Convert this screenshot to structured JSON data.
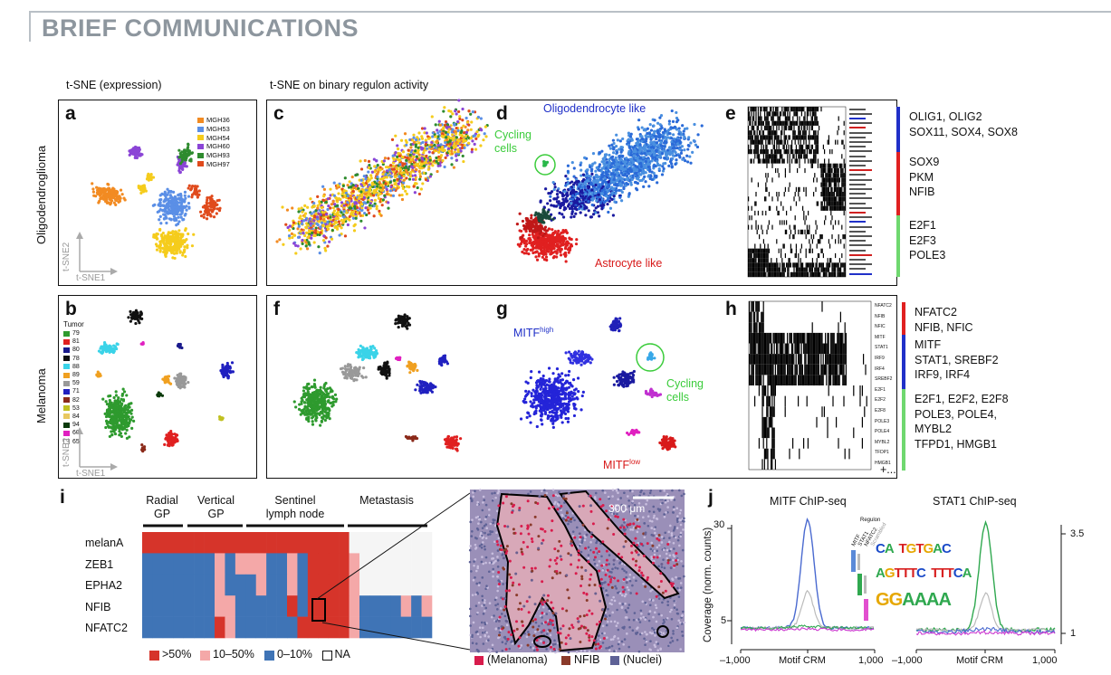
{
  "header": {
    "title": "BRIEF COMMUNICATIONS"
  },
  "sections": {
    "expression": "t-SNE (expression)",
    "binary": "t-SNE on binary regulon activity"
  },
  "row_labels": {
    "oligo": "Oligodendroglioma",
    "melanoma": "Melanoma"
  },
  "axes": {
    "tsne1": "t-SNE1",
    "tsne2": "t-SNE2"
  },
  "panels": {
    "a": "a",
    "b": "b",
    "c": "c",
    "d": "d",
    "e": "e",
    "f": "f",
    "g": "g",
    "h": "h",
    "i": "i",
    "j": "j"
  },
  "legend_a": {
    "items": [
      {
        "label": "MGH36",
        "color": "#f28b22"
      },
      {
        "label": "MGH53",
        "color": "#5b8fe6"
      },
      {
        "label": "MGH54",
        "color": "#f5cc1c"
      },
      {
        "label": "MGH60",
        "color": "#8b45d6"
      },
      {
        "label": "MGH93",
        "color": "#2e8b2e"
      },
      {
        "label": "MGH97",
        "color": "#e04a1c"
      }
    ]
  },
  "legend_b": {
    "title": "Tumor",
    "items": [
      {
        "label": "79",
        "color": "#2e9a2e"
      },
      {
        "label": "81",
        "color": "#e02020"
      },
      {
        "label": "80",
        "color": "#1a1a8c"
      },
      {
        "label": "78",
        "color": "#111111"
      },
      {
        "label": "88",
        "color": "#3ad3e8"
      },
      {
        "label": "89",
        "color": "#f0a020"
      },
      {
        "label": "59",
        "color": "#999999"
      },
      {
        "label": "71",
        "color": "#2020c0"
      },
      {
        "label": "82",
        "color": "#8b2a1a"
      },
      {
        "label": "53",
        "color": "#c0c020"
      },
      {
        "label": "84",
        "color": "#e8c860"
      },
      {
        "label": "94",
        "color": "#0a3a0a"
      },
      {
        "label": "60",
        "color": "#e020c0"
      },
      {
        "label": "65",
        "color": "#ffffff"
      }
    ]
  },
  "panel_d": {
    "oligo_label": "Oligodendrocyte like",
    "cycling_label_1": "Cycling",
    "cycling_label_2": "cells",
    "astro_label": "Astrocyte like"
  },
  "panel_e": {
    "groups": [
      {
        "lines": [
          "OLIG1, OLIG2",
          "SOX11, SOX4, SOX8"
        ],
        "color": "#2030c8"
      },
      {
        "lines": [
          "SOX9",
          "PKM",
          "NFIB"
        ],
        "color": "#e02020"
      },
      {
        "lines": [
          "E2F1",
          "E2F3",
          "POLE3"
        ],
        "color": "#6fd86f"
      }
    ]
  },
  "panel_g": {
    "high_label": "MITF",
    "high_sup": "high",
    "low_label": "MITF",
    "low_sup": "low",
    "cycling_label_1": "Cycling",
    "cycling_label_2": "cells"
  },
  "panel_h": {
    "rows": [
      "NFATC2",
      "NFIB",
      "NFIC",
      "MITF",
      "STAT1",
      "IRF9",
      "IRF4",
      "SREBF2",
      "E2F1",
      "E2F2",
      "E2F8",
      "POLE3",
      "POLE4",
      "MYBL2",
      "TFDP1",
      "HMGB1"
    ],
    "groups": [
      {
        "lines": [
          "NFATC2",
          "NFIB, NFIC"
        ],
        "color": "#e02020"
      },
      {
        "lines": [
          "MITF",
          "STAT1, SREBF2",
          "IRF9, IRF4"
        ],
        "color": "#2030c8"
      },
      {
        "lines": [
          "E2F1, E2F2, E2F8",
          "POLE3, POLE4,",
          "MYBL2",
          "TFPD1, HMGB1"
        ],
        "color": "#6fd86f"
      }
    ],
    "more": "+..."
  },
  "panel_i": {
    "columns": [
      "Radial\nGP",
      "Vertical\nGP",
      "Sentinel\nlymph node",
      "Metastasis"
    ],
    "col_lines": [
      [
        "Radial",
        "GP"
      ],
      [
        "Vertical",
        "GP"
      ],
      [
        "Sentinel",
        "lymph node"
      ],
      [
        "Metastasis"
      ]
    ],
    "rows": [
      "melanA",
      "ZEB1",
      "EPHA2",
      "NFIB",
      "NFATC2"
    ],
    "legend": [
      {
        "label": ">50%",
        "color": "#d6342a"
      },
      {
        "label": "10–50%",
        "color": "#f4a8a8"
      },
      {
        "label": "0–10%",
        "color": "#3f74b6"
      },
      {
        "label": "NA",
        "color": "#ffffff"
      }
    ],
    "matrix": [
      [
        "H",
        "H",
        "H",
        "H",
        "H",
        "H",
        "H",
        "H",
        "H",
        "H",
        "H",
        "H",
        "H",
        "H",
        "H",
        "H",
        "H",
        "H",
        "H",
        "H",
        "N",
        "N",
        "N",
        "N",
        "N",
        "N",
        "N",
        "N"
      ],
      [
        "L",
        "L",
        "L",
        "L",
        "L",
        "L",
        "L",
        "P",
        "M",
        "P",
        "P",
        "P",
        "L",
        "L",
        "P",
        "L",
        "H",
        "H",
        "H",
        "H",
        "P",
        "N",
        "N",
        "N",
        "N",
        "N",
        "N",
        "N"
      ],
      [
        "L",
        "L",
        "L",
        "L",
        "L",
        "L",
        "L",
        "P",
        "M",
        "L",
        "L",
        "P",
        "L",
        "L",
        "P",
        "L",
        "H",
        "H",
        "H",
        "H",
        "P",
        "N",
        "N",
        "N",
        "N",
        "N",
        "N",
        "N"
      ],
      [
        "L",
        "L",
        "L",
        "L",
        "L",
        "L",
        "L",
        "P",
        "P",
        "L",
        "L",
        "L",
        "L",
        "L",
        "H",
        "L",
        "H",
        "H",
        "H",
        "H",
        "P",
        "L",
        "L",
        "L",
        "L",
        "P",
        "L",
        "P"
      ],
      [
        "L",
        "L",
        "L",
        "L",
        "L",
        "L",
        "L",
        "H",
        "P",
        "L",
        "L",
        "L",
        "L",
        "L",
        "L",
        "H",
        "H",
        "H",
        "H",
        "H",
        "P",
        "L",
        "L",
        "L",
        "L",
        "L",
        "L",
        "L"
      ]
    ],
    "scale_label": "300 μm",
    "ihc_legend": [
      {
        "label": "(Melanoma)",
        "color": "#d81c4c"
      },
      {
        "label": "NFIB",
        "color": "#8a3a2a"
      },
      {
        "label": "(Nuclei)",
        "color": "#5e6296"
      }
    ]
  },
  "panel_j": {
    "titles": [
      "MITF ChIP-seq",
      "STAT1 ChIP-seq"
    ],
    "ylabel": "Coverage (norm. counts)",
    "left_ticks": [
      "30",
      "5"
    ],
    "right_ticks": [
      "3.5",
      "1"
    ],
    "xticks": [
      "–1,000",
      "Motif CRM",
      "1,000"
    ],
    "regulon_title": "Regulon",
    "regulon_cols": [
      "MITF",
      "STAT1",
      "NFATC2",
      "Scrambled"
    ],
    "motifs": [
      "CA  TGTGAC",
      "AGTTTC  TTTCA",
      "GGAAAA"
    ],
    "motif_colors": [
      "#5b8ad8",
      "#2fa84f",
      "#e24fcf"
    ]
  }
}
